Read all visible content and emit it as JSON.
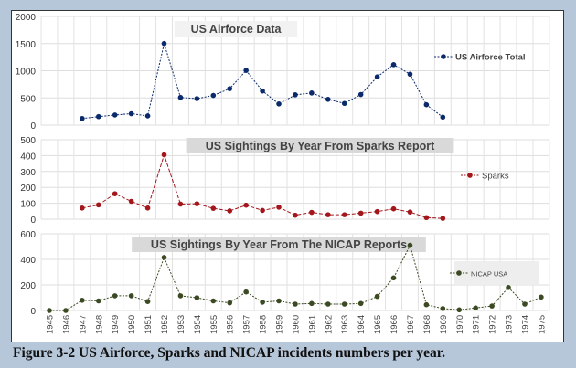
{
  "caption": "Figure 3-2 US Airforce, Sparks and NICAP incidents numbers per year.",
  "chart_data": [
    {
      "type": "line",
      "title": "US Airforce  Data",
      "ylim": [
        0,
        2000
      ],
      "yticks": [
        0,
        500,
        1000,
        1500,
        2000
      ],
      "grid": true,
      "legend": "right",
      "x": [
        1947,
        1948,
        1949,
        1950,
        1951,
        1952,
        1953,
        1954,
        1955,
        1956,
        1957,
        1958,
        1959,
        1960,
        1961,
        1962,
        1963,
        1964,
        1965,
        1966,
        1967,
        1968,
        1969
      ],
      "series": [
        {
          "name": "US Airforce Total",
          "color": "#0b2a6b",
          "values": [
            122,
            156,
            186,
            210,
            169,
            1501,
            509,
            487,
            545,
            670,
            1006,
            627,
            390,
            557,
            591,
            474,
            399,
            562,
            887,
            1112,
            937,
            375,
            146
          ]
        }
      ]
    },
    {
      "type": "line",
      "title": "US Sightings By Year From Sparks Report",
      "ylim": [
        0,
        500
      ],
      "yticks": [
        0,
        100,
        200,
        300,
        400,
        500
      ],
      "grid": true,
      "legend": "right",
      "x": [
        1947,
        1948,
        1949,
        1950,
        1951,
        1952,
        1953,
        1954,
        1955,
        1956,
        1957,
        1958,
        1959,
        1960,
        1961,
        1962,
        1963,
        1964,
        1965,
        1966,
        1967,
        1968,
        1969
      ],
      "series": [
        {
          "name": "Sparks",
          "color": "#a3161c",
          "values": [
            70,
            90,
            160,
            112,
            70,
            405,
            95,
            97,
            68,
            52,
            88,
            55,
            75,
            25,
            43,
            28,
            28,
            38,
            48,
            65,
            45,
            10,
            5
          ]
        }
      ]
    },
    {
      "type": "line",
      "title": "US Sightings By Year From The NICAP Reports",
      "ylim": [
        0,
        600
      ],
      "yticks": [
        0,
        200,
        400,
        600
      ],
      "grid": true,
      "legend": "right",
      "x": [
        1945,
        1946,
        1947,
        1948,
        1949,
        1950,
        1951,
        1952,
        1953,
        1954,
        1955,
        1956,
        1957,
        1958,
        1959,
        1960,
        1961,
        1962,
        1963,
        1964,
        1965,
        1966,
        1967,
        1968,
        1969,
        1970,
        1971,
        1972,
        1973,
        1974,
        1975
      ],
      "series": [
        {
          "name": "NICAP USA",
          "color": "#3b4a22",
          "values": [
            0,
            0,
            80,
            75,
            115,
            115,
            70,
            415,
            115,
            100,
            75,
            60,
            145,
            65,
            75,
            50,
            55,
            50,
            50,
            55,
            110,
            255,
            510,
            45,
            15,
            5,
            20,
            35,
            180,
            50,
            105
          ]
        }
      ]
    }
  ],
  "xaxis_years": [
    "1945",
    "1946",
    "1947",
    "1948",
    "1949",
    "1950",
    "1951",
    "1952",
    "1953",
    "1954",
    "1955",
    "1956",
    "1957",
    "1958",
    "1959",
    "1960",
    "1961",
    "1962",
    "1963",
    "1964",
    "1965",
    "1966",
    "1967",
    "1968",
    "1969",
    "1970",
    "1971",
    "1972",
    "1973",
    "1974",
    "1975"
  ]
}
